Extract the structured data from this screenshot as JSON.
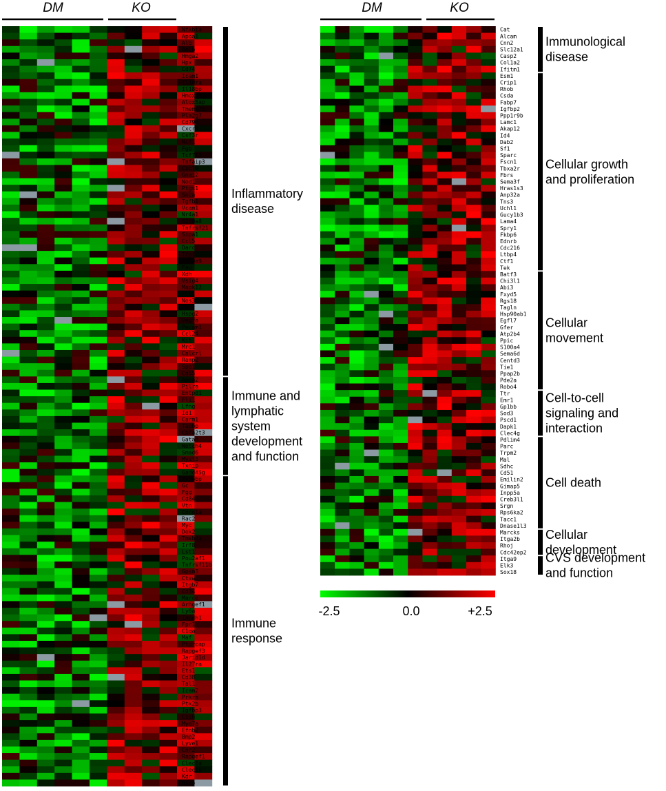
{
  "chart_data": [
    {
      "type": "heatmap",
      "groups": [
        "DM",
        "KO"
      ],
      "columns_per_group": 6,
      "genes": [
        "Nfkbia",
        "Apoa1",
        "Alb",
        "Relb",
        "Hmga2",
        "Hpx",
        "Cd74",
        "Icam1",
        "Il10ra",
        "Il18bp",
        "Hmox1",
        "Alox5ap",
        "Tmem173",
        "Pla2g7",
        "Cd79b",
        "Cxcr4",
        "Csf3r",
        "Ncf1",
        "Fgb",
        "Tcf7l2",
        "Tnfaip3",
        "Cxcl9",
        "Gnai2",
        "Nod1",
        "Ptgs1",
        "Snca",
        "Tgfb1",
        "Vcam1",
        "Nr4a1",
        "S100a8",
        "Tnfrsf21",
        "Sipa1",
        "Ccl5",
        "Darc",
        "Tfpi",
        "S100a9",
        "Fau",
        "Xdh",
        "Vsig4",
        "Mapk12",
        "Flt1",
        "Nos3",
        "Hnmt",
        "Hspg2",
        "Vegfa",
        "Pecam1",
        "Ccl24",
        "Kit",
        "Mrc1",
        "Calcrl",
        "Ramp2",
        "Spp1",
        "Cd55",
        "Apoa2",
        "Pilra",
        "Entpd1",
        "Fli1",
        "Lfng",
        "Id1",
        "Carm1",
        "Tapbp",
        "Cbfa2t3",
        "Gata4",
        "Notch4",
        "Smad6",
        "Myst3",
        "Txnip",
        "Gadd45g",
        "Tyrobp",
        "Gc",
        "Fgg",
        "Cd84",
        "Vtn",
        "Coro1a",
        "Rac2",
        "Myc",
        "Dok2",
        "Tmsb4x",
        "Irf8",
        "Lst1",
        "Pou2af1",
        "Tnfrsf11b",
        "Gpsm3",
        "Ctsw",
        "Itgb7",
        "Cd34",
        "Marco",
        "Arhgef1",
        "Ly6a",
        "Impdh1",
        "Fpr1",
        "C1qa",
        "Maf",
        "Ptprcap",
        "Rapgef3",
        "Jarid1d",
        "Il27ra",
        "Ets1",
        "Cd38",
        "Tal1",
        "Icam2",
        "Prkra",
        "Ptk2b",
        "Igfbp3",
        "Cish",
        "Myo7a",
        "Efnb2",
        "Bmp2",
        "Lyve1",
        "Cnr2",
        "Rapgef1",
        "Clec1a",
        "Clec1b",
        "Kdr",
        "Hamp"
      ],
      "categories": [
        {
          "label": [
            "Inflammatory",
            "disease"
          ],
          "start": "Nfkbia",
          "end": "Cd55"
        },
        {
          "label": [
            "Immune and",
            "lymphatic",
            "system",
            "development",
            "and function"
          ],
          "start": "Apoa2",
          "end": "Gadd45g"
        },
        {
          "label": [
            "Immune",
            "response"
          ],
          "start": "Tyrobp",
          "end": "Hamp"
        }
      ]
    },
    {
      "type": "heatmap",
      "groups": [
        "DM",
        "KO"
      ],
      "columns_per_group": 6,
      "genes": [
        "Cat",
        "Alcam",
        "Cnn2",
        "Slc12a1",
        "Casp2",
        "Col1a2",
        "Ifitm1",
        "Esm1",
        "Crip1",
        "Rhob",
        "Csda",
        "Fabp7",
        "Igfbp2",
        "Ppp1r9b",
        "Lamc1",
        "Akap12",
        "Id4",
        "Dab2",
        "Sf1",
        "Sparc",
        "Fscn1",
        "Tbxa2r",
        "Fbrs",
        "Sema3f",
        "Hras1s3",
        "Anp32a",
        "Tns3",
        "Uchl1",
        "Gucy1b3",
        "Lama4",
        "Spry1",
        "Fkbp6",
        "Ednrb",
        "Cdc216",
        "Ltbp4",
        "Ctf1",
        "Tek",
        "Batf3",
        "Chi3l1",
        "Abi3",
        "Fxyd5",
        "Rgs18",
        "Tagln",
        "Hsp90ab1",
        "Egfl7",
        "Gfer",
        "Atp2b4",
        "Ppic",
        "S100a4",
        "Sema6d",
        "Centd3",
        "Tie1",
        "Ppap2b",
        "Pde2a",
        "Robo4",
        "Ttr",
        "Emr1",
        "Gp1bb",
        "Sod3",
        "Pscd1",
        "Dapk1",
        "Clec4g",
        "Pdlim4",
        "Parc",
        "Trpm2",
        "Mal",
        "Sdhc",
        "Cd51",
        "Emilin2",
        "Gimap5",
        "Inpp5a",
        "Creb3l1",
        "Srgn",
        "Rps6ka2",
        "Tacc1",
        "Dnase1l3",
        "Marcks",
        "Itga2b",
        "Rhoj",
        "Cdc42ep2",
        "Itga9",
        "Elk3",
        "Sox18"
      ],
      "categories": [
        {
          "label": [
            "Immunological",
            "disease"
          ],
          "start": "Cat",
          "end": "Ifitm1"
        },
        {
          "label": [
            "Cellular growth",
            "and proliferation"
          ],
          "start": "Esm1",
          "end": "Tek"
        },
        {
          "label": [
            "Cellular",
            "movement"
          ],
          "start": "Batf3",
          "end": "Robo4"
        },
        {
          "label": [
            "Cell-to-cell",
            "signaling and",
            "interaction"
          ],
          "start": "Ttr",
          "end": "Clec4g"
        },
        {
          "label": [
            "Cell death"
          ],
          "start": "Pdlim4",
          "end": "Dnase1l3"
        },
        {
          "label": [
            "Cellular",
            "development"
          ],
          "start": "Marcks",
          "end": "Cdc42ep2"
        },
        {
          "label": [
            "CVS development",
            "and function"
          ],
          "start": "Itga9",
          "end": "Sox18"
        }
      ]
    }
  ],
  "color_scale": {
    "min_label": "-2.5",
    "mid_label": "0.0",
    "max_label": "+2.5",
    "min": -2.5,
    "mid": 0.0,
    "max": 2.5,
    "low_color": "#00ff00",
    "mid_color": "#000000",
    "high_color": "#ff0000",
    "missing_color": "#8c9ba3"
  }
}
